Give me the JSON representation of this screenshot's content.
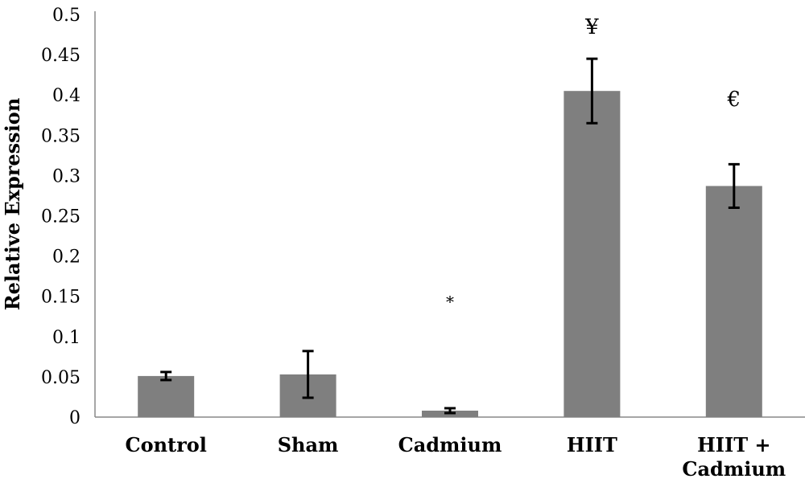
{
  "chart_data": {
    "type": "bar",
    "title": "",
    "xlabel": "",
    "ylabel": "Relative Expression",
    "ylim": [
      0,
      0.5
    ],
    "yticks": [
      "0",
      "0.05",
      "0.1",
      "0.15",
      "0.2",
      "0.25",
      "0.3",
      "0.35",
      "0.4",
      "0.45",
      "0.5"
    ],
    "categories": [
      [
        "Control"
      ],
      [
        "Sham"
      ],
      [
        "Cadmium"
      ],
      [
        "HIIT"
      ],
      [
        "HIIT +",
        "Cadmium"
      ]
    ],
    "values": [
      0.051,
      0.053,
      0.008,
      0.405,
      0.287
    ],
    "errors": [
      0.005,
      0.029,
      0.003,
      0.04,
      0.027
    ],
    "annotations": [
      {
        "category_index": 2,
        "text": "*",
        "y": 0.145
      },
      {
        "category_index": 3,
        "text": "¥",
        "y": 0.485
      },
      {
        "category_index": 4,
        "text": "€",
        "y": 0.395
      }
    ],
    "bar_color": "#7f7f7f",
    "grid": false,
    "legend": "none"
  }
}
